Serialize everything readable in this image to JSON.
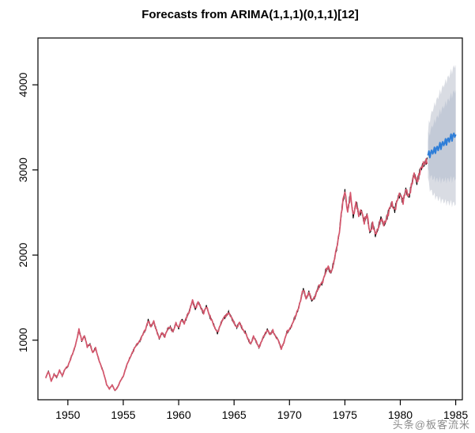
{
  "watermark": {
    "text": "头条@板客流米"
  },
  "chart_data": {
    "type": "line",
    "title": "Forecasts from ARIMA(1,1,1)(0,1,1)[12]",
    "xlabel": "",
    "ylabel": "",
    "xlim": [
      1947.3,
      1985.6
    ],
    "ylim": [
      300,
      4550
    ],
    "x_ticks": [
      1950,
      1955,
      1960,
      1965,
      1970,
      1975,
      1980,
      1985
    ],
    "y_ticks": [
      1000,
      2000,
      3000,
      4000
    ],
    "grid": false,
    "legend": "none",
    "colors": {
      "observed": "#000000",
      "fitted": "#d4566c",
      "forecast": "#2f7ed8",
      "ci95": "#d9dce3",
      "ci80": "#c3cad7",
      "axis": "#000000"
    },
    "seasonal_shape": [
      0.0,
      0.06,
      -0.05,
      0.04,
      -0.03,
      0.07,
      -0.06,
      0.03,
      -0.04,
      0.06,
      -0.07,
      0.02
    ],
    "texture": {
      "seasonal_amp": 0.035,
      "noise_amp": 0.02
    },
    "observed_start": 1948.0,
    "observed_end": 1982.42,
    "observed_anchors": [
      [
        1948.0,
        560
      ],
      [
        1948.25,
        630
      ],
      [
        1948.5,
        520
      ],
      [
        1948.75,
        600
      ],
      [
        1949.0,
        560
      ],
      [
        1949.25,
        650
      ],
      [
        1949.5,
        580
      ],
      [
        1949.75,
        660
      ],
      [
        1950.0,
        700
      ],
      [
        1950.25,
        780
      ],
      [
        1950.5,
        860
      ],
      [
        1950.75,
        980
      ],
      [
        1951.0,
        1120
      ],
      [
        1951.25,
        990
      ],
      [
        1951.5,
        1060
      ],
      [
        1951.75,
        920
      ],
      [
        1952.0,
        950
      ],
      [
        1952.25,
        860
      ],
      [
        1952.5,
        900
      ],
      [
        1952.75,
        790
      ],
      [
        1953.0,
        700
      ],
      [
        1953.25,
        600
      ],
      [
        1953.5,
        480
      ],
      [
        1953.75,
        430
      ],
      [
        1954.0,
        470
      ],
      [
        1954.25,
        410
      ],
      [
        1954.5,
        450
      ],
      [
        1954.75,
        520
      ],
      [
        1955.0,
        580
      ],
      [
        1955.25,
        680
      ],
      [
        1955.5,
        760
      ],
      [
        1955.75,
        840
      ],
      [
        1956.0,
        900
      ],
      [
        1956.25,
        950
      ],
      [
        1956.5,
        1000
      ],
      [
        1956.75,
        1060
      ],
      [
        1957.0,
        1120
      ],
      [
        1957.25,
        1240
      ],
      [
        1957.5,
        1150
      ],
      [
        1957.75,
        1220
      ],
      [
        1958.0,
        1120
      ],
      [
        1958.25,
        1010
      ],
      [
        1958.5,
        1090
      ],
      [
        1958.75,
        1050
      ],
      [
        1959.0,
        1120
      ],
      [
        1959.25,
        1160
      ],
      [
        1959.5,
        1100
      ],
      [
        1959.75,
        1190
      ],
      [
        1960.0,
        1150
      ],
      [
        1960.25,
        1240
      ],
      [
        1960.5,
        1190
      ],
      [
        1960.75,
        1290
      ],
      [
        1961.0,
        1350
      ],
      [
        1961.25,
        1460
      ],
      [
        1961.5,
        1380
      ],
      [
        1961.75,
        1440
      ],
      [
        1962.0,
        1380
      ],
      [
        1962.25,
        1330
      ],
      [
        1962.5,
        1390
      ],
      [
        1962.75,
        1300
      ],
      [
        1963.0,
        1240
      ],
      [
        1963.25,
        1140
      ],
      [
        1963.5,
        1090
      ],
      [
        1963.75,
        1180
      ],
      [
        1964.0,
        1240
      ],
      [
        1964.25,
        1290
      ],
      [
        1964.5,
        1330
      ],
      [
        1964.75,
        1260
      ],
      [
        1965.0,
        1210
      ],
      [
        1965.25,
        1150
      ],
      [
        1965.5,
        1200
      ],
      [
        1965.75,
        1140
      ],
      [
        1966.0,
        1090
      ],
      [
        1966.25,
        1010
      ],
      [
        1966.5,
        960
      ],
      [
        1966.75,
        1040
      ],
      [
        1967.0,
        980
      ],
      [
        1967.25,
        920
      ],
      [
        1967.5,
        990
      ],
      [
        1967.75,
        1060
      ],
      [
        1968.0,
        1130
      ],
      [
        1968.25,
        1060
      ],
      [
        1968.5,
        1110
      ],
      [
        1968.75,
        1050
      ],
      [
        1969.0,
        990
      ],
      [
        1969.25,
        900
      ],
      [
        1969.5,
        980
      ],
      [
        1969.75,
        1080
      ],
      [
        1970.0,
        1130
      ],
      [
        1970.25,
        1190
      ],
      [
        1970.5,
        1260
      ],
      [
        1970.75,
        1360
      ],
      [
        1971.0,
        1470
      ],
      [
        1971.25,
        1590
      ],
      [
        1971.5,
        1500
      ],
      [
        1971.75,
        1560
      ],
      [
        1972.0,
        1460
      ],
      [
        1972.25,
        1510
      ],
      [
        1972.5,
        1580
      ],
      [
        1972.75,
        1640
      ],
      [
        1973.0,
        1700
      ],
      [
        1973.25,
        1790
      ],
      [
        1973.5,
        1860
      ],
      [
        1973.75,
        1800
      ],
      [
        1974.0,
        1900
      ],
      [
        1974.25,
        2080
      ],
      [
        1974.5,
        2280
      ],
      [
        1974.75,
        2550
      ],
      [
        1975.0,
        2760
      ],
      [
        1975.25,
        2520
      ],
      [
        1975.5,
        2690
      ],
      [
        1975.75,
        2470
      ],
      [
        1976.0,
        2620
      ],
      [
        1976.25,
        2450
      ],
      [
        1976.5,
        2540
      ],
      [
        1976.75,
        2390
      ],
      [
        1977.0,
        2460
      ],
      [
        1977.25,
        2280
      ],
      [
        1977.5,
        2360
      ],
      [
        1977.75,
        2230
      ],
      [
        1978.0,
        2330
      ],
      [
        1978.25,
        2420
      ],
      [
        1978.5,
        2350
      ],
      [
        1978.75,
        2440
      ],
      [
        1979.0,
        2520
      ],
      [
        1979.25,
        2600
      ],
      [
        1979.5,
        2540
      ],
      [
        1979.75,
        2640
      ],
      [
        1980.0,
        2720
      ],
      [
        1980.25,
        2640
      ],
      [
        1980.5,
        2750
      ],
      [
        1980.75,
        2690
      ],
      [
        1981.0,
        2820
      ],
      [
        1981.25,
        2930
      ],
      [
        1981.5,
        2870
      ],
      [
        1981.75,
        2980
      ],
      [
        1982.0,
        3030
      ],
      [
        1982.17,
        3080
      ],
      [
        1982.33,
        3120
      ]
    ],
    "forecast": {
      "start": 1982.5,
      "end": 1985.0,
      "mean_start": 3170,
      "mean_end": 3420,
      "seasonal_amp": 0.05,
      "hw95": [
        260,
        820
      ],
      "hw80": [
        160,
        520
      ]
    }
  }
}
